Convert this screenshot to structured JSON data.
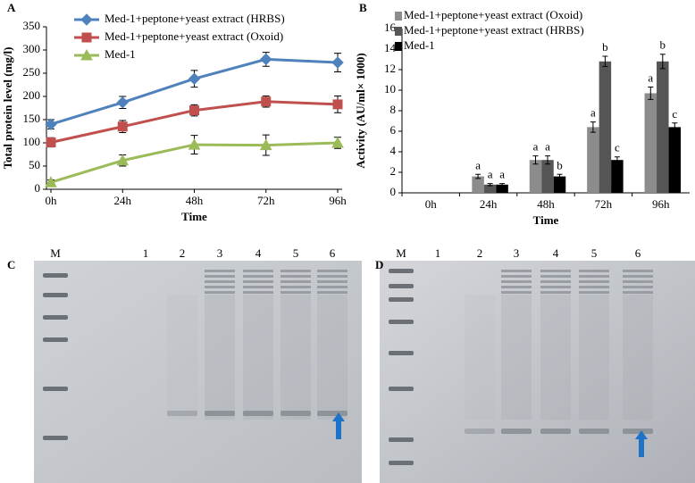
{
  "chart_data": [
    {
      "type": "line",
      "title": "A",
      "x_label": "Time",
      "y_label": "Total protein level (mg/l)",
      "categories": [
        "0h",
        "24h",
        "48h",
        "72h",
        "96h"
      ],
      "ylim": [
        0,
        350
      ],
      "yticks": [
        0,
        50,
        100,
        150,
        200,
        250,
        300,
        350
      ],
      "series": [
        {
          "name": "Med-1+peptone+yeast extract (HRBS)",
          "color": "#4f81bd",
          "marker": "diamond",
          "values": [
            140,
            187,
            238,
            280,
            273
          ],
          "errors": [
            10,
            13,
            18,
            15,
            20
          ]
        },
        {
          "name": "Med-1+peptone+yeast extract (Oxoid)",
          "color": "#c0504d",
          "marker": "square",
          "values": [
            101,
            135,
            170,
            189,
            183
          ],
          "errors": [
            10,
            13,
            12,
            12,
            18
          ]
        },
        {
          "name": "Med-1",
          "color": "#9bbb59",
          "marker": "triangle",
          "values": [
            15,
            62,
            96,
            95,
            100
          ],
          "errors": [
            5,
            12,
            20,
            22,
            12
          ]
        }
      ]
    },
    {
      "type": "bar",
      "title": "B",
      "x_label": "Time",
      "y_label": "Activity (AU/ml× 1000)",
      "categories": [
        "0h",
        "24h",
        "48h",
        "72h",
        "96h"
      ],
      "ylim": [
        0,
        16
      ],
      "yticks": [
        0,
        2,
        4,
        6,
        8,
        10,
        12,
        14,
        16
      ],
      "series": [
        {
          "name": "Med-1+peptone+yeast extract (Oxoid)",
          "color": "#8c8c8c",
          "values": [
            0,
            1.6,
            3.2,
            6.4,
            9.7
          ],
          "errors": [
            0,
            0.2,
            0.4,
            0.5,
            0.6
          ],
          "letters": [
            null,
            "a",
            "a",
            "a",
            "a"
          ]
        },
        {
          "name": "Med-1+peptone+yeast extract (HRBS)",
          "color": "#555555",
          "values": [
            0,
            0.8,
            3.2,
            12.8,
            12.8
          ],
          "errors": [
            0,
            0.1,
            0.4,
            0.5,
            0.7
          ],
          "letters": [
            null,
            "a",
            "a",
            "b",
            "b"
          ]
        },
        {
          "name": "Med-1",
          "color": "#000000",
          "values": [
            0,
            0.8,
            1.6,
            3.2,
            6.4
          ],
          "errors": [
            0,
            0.1,
            0.2,
            0.3,
            0.4
          ],
          "letters": [
            null,
            "a",
            "b",
            "c",
            "c"
          ]
        }
      ]
    }
  ],
  "gels": [
    {
      "label": "C",
      "lanes": [
        "M",
        "1",
        "2",
        "3",
        "4",
        "5",
        "6"
      ]
    },
    {
      "label": "D",
      "lanes": [
        "M",
        "1",
        "2",
        "3",
        "4",
        "5",
        "6"
      ]
    }
  ]
}
